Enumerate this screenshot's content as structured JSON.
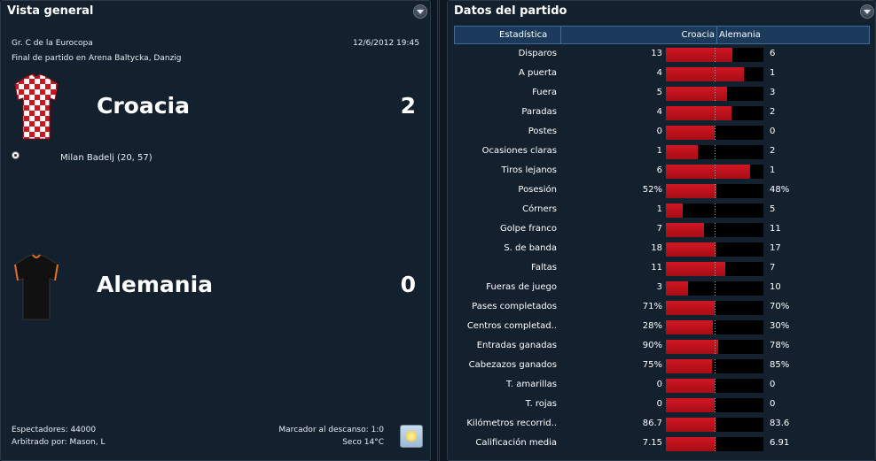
{
  "overview": {
    "title": "Vista general",
    "competition": "Gr. C de la Eurocopa",
    "venue": "Final de partido en Arena Baltycka, Danzig",
    "datetime": "12/6/2012 19:45",
    "home": {
      "name": "Croacia",
      "score": "2",
      "scorer": "Milan Badelj (20, 57)"
    },
    "away": {
      "name": "Alemania",
      "score": "0"
    },
    "attendance": "Espectadores: 44000",
    "referee": "Arbitrado por: Mason, L",
    "halftime": "Marcador al descanso: 1:0",
    "weather": "Seco 14°C",
    "weather_icon": "sun-icon"
  },
  "stats": {
    "title": "Datos del partido",
    "header": {
      "stat": "Estadística",
      "home": "Croacia",
      "away": "Alemania"
    },
    "colors": {
      "home_bar": "#c8121e",
      "bar_bg": "#000000",
      "header_bg": "#1c3a5c"
    },
    "rows": [
      {
        "label": "Disparos",
        "home": "13",
        "away": "6",
        "share": 0.68
      },
      {
        "label": "A puerta",
        "home": "4",
        "away": "1",
        "share": 0.8
      },
      {
        "label": "Fuera",
        "home": "5",
        "away": "3",
        "share": 0.63
      },
      {
        "label": "Paradas",
        "home": "4",
        "away": "2",
        "share": 0.67
      },
      {
        "label": "Postes",
        "home": "0",
        "away": "0",
        "share": 0.5
      },
      {
        "label": "Ocasiones claras",
        "home": "1",
        "away": "2",
        "share": 0.33
      },
      {
        "label": "Tiros lejanos",
        "home": "6",
        "away": "1",
        "share": 0.86
      },
      {
        "label": "Posesión",
        "home": "52%",
        "away": "48%",
        "share": 0.52
      },
      {
        "label": "Córners",
        "home": "1",
        "away": "5",
        "share": 0.17
      },
      {
        "label": "Golpe franco",
        "home": "7",
        "away": "11",
        "share": 0.39
      },
      {
        "label": "S. de banda",
        "home": "18",
        "away": "17",
        "share": 0.51
      },
      {
        "label": "Faltas",
        "home": "11",
        "away": "7",
        "share": 0.61
      },
      {
        "label": "Fueras de juego",
        "home": "3",
        "away": "10",
        "share": 0.23
      },
      {
        "label": "Pases completados",
        "home": "71%",
        "away": "70%",
        "share": 0.5
      },
      {
        "label": "Centros completad..",
        "home": "28%",
        "away": "30%",
        "share": 0.48
      },
      {
        "label": "Entradas ganadas",
        "home": "90%",
        "away": "78%",
        "share": 0.54
      },
      {
        "label": "Cabezazos ganados",
        "home": "75%",
        "away": "85%",
        "share": 0.47
      },
      {
        "label": "T. amarillas",
        "home": "0",
        "away": "0",
        "share": 0.5
      },
      {
        "label": "T. rojas",
        "home": "0",
        "away": "0",
        "share": 0.5
      },
      {
        "label": "Kilómetros recorrid..",
        "home": "86.7",
        "away": "83.6",
        "share": 0.51
      },
      {
        "label": "Calificación media",
        "home": "7.15",
        "away": "6.91",
        "share": 0.51
      }
    ]
  }
}
